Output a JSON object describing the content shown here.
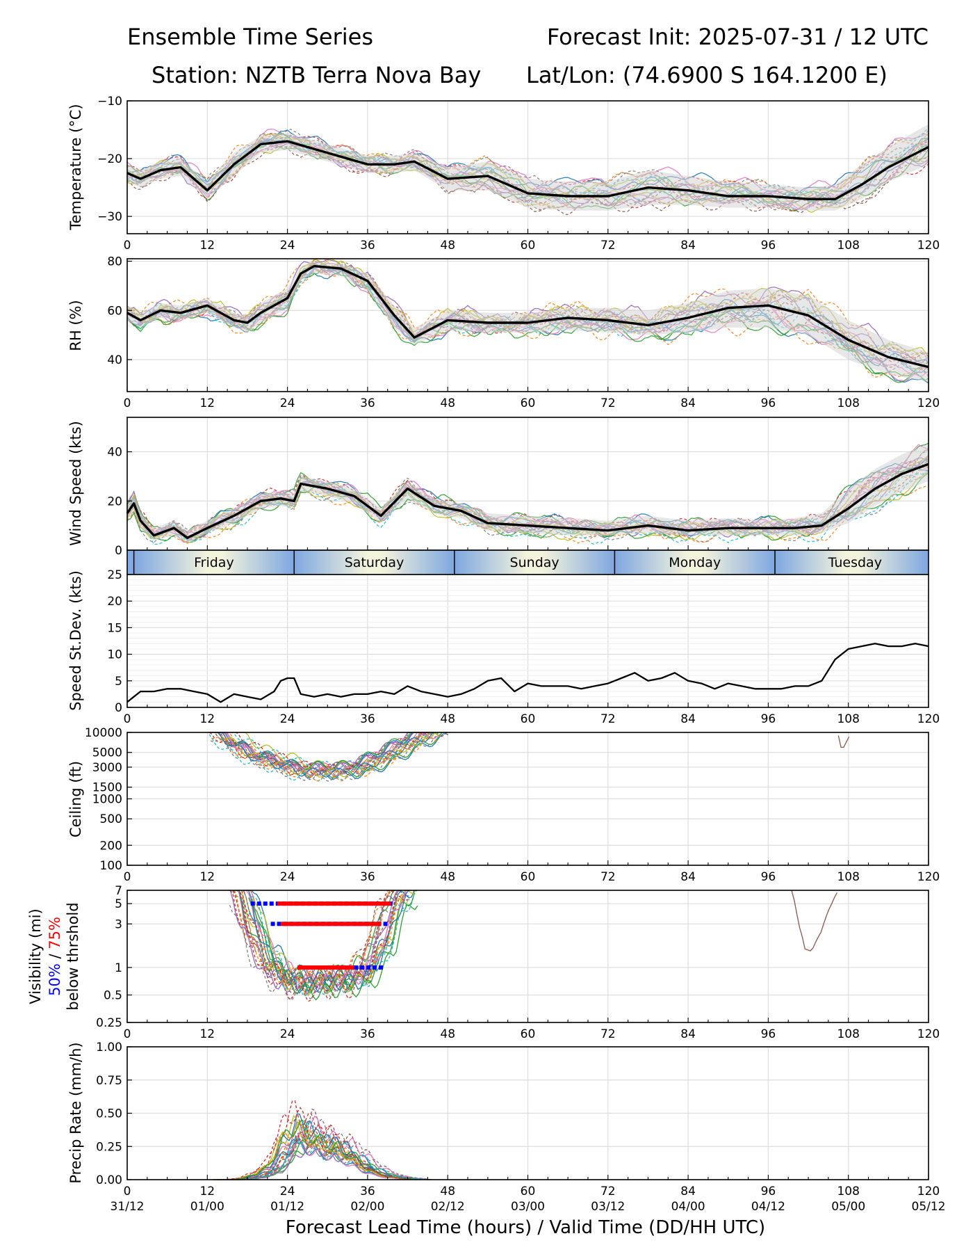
{
  "header": {
    "title_left": "Ensemble Time Series",
    "title_right": "Forecast Init: 2025-07-31 / 12 UTC",
    "station": "Station: NZTB Terra Nova Bay",
    "latlon": "Lat/Lon: (74.6900 S 164.1200 E)"
  },
  "x_axis": {
    "label": "Forecast Lead Time (hours) / Valid Time (DD/HH UTC)",
    "ticks": [
      0,
      12,
      24,
      36,
      48,
      60,
      72,
      84,
      96,
      108,
      120
    ],
    "tick_labels": [
      "0",
      "12",
      "24",
      "36",
      "48",
      "60",
      "72",
      "84",
      "96",
      "108",
      "120"
    ],
    "valid_time_labels": [
      "31/12",
      "01/00",
      "01/12",
      "02/00",
      "02/12",
      "03/00",
      "03/12",
      "04/00",
      "04/12",
      "05/00",
      "05/12"
    ]
  },
  "day_band": {
    "days": [
      "Friday",
      "Saturday",
      "Sunday",
      "Monday",
      "Tuesday"
    ],
    "boundaries_hours": [
      1,
      25,
      49,
      73,
      97
    ]
  },
  "colors": {
    "ensemble_mean": "#000000",
    "spread_band": "#d3d3d3",
    "vis_threshold_50": "#0000ff",
    "vis_threshold_75": "#ff0000",
    "grid": "#dddddd",
    "members": [
      "#1f77b4",
      "#ff7f0e",
      "#2ca02c",
      "#d62728",
      "#9467bd",
      "#8c564b",
      "#e377c2",
      "#7f7f7f",
      "#bcbd22",
      "#17becf"
    ]
  },
  "chart_data": [
    {
      "type": "line",
      "panel": "temperature",
      "ylabel": "Temperature (°C)",
      "ylim": [
        -33,
        -10
      ],
      "yticks": [
        -10,
        -20,
        -30
      ],
      "ytick_labels": [
        "−10",
        "−20",
        "−30"
      ],
      "grid": true,
      "x": [
        0,
        2,
        5,
        8,
        12,
        16,
        20,
        24,
        30,
        36,
        40,
        43,
        48,
        54,
        60,
        66,
        72,
        78,
        84,
        90,
        96,
        102,
        106,
        110,
        114,
        120
      ],
      "series": [
        {
          "name": "mean",
          "values": [
            -22.5,
            -23.5,
            -22.0,
            -21.5,
            -25.5,
            -21.0,
            -17.5,
            -17.0,
            -19.0,
            -21.0,
            -21.0,
            -20.5,
            -23.5,
            -23.0,
            -26.0,
            -26.5,
            -26.5,
            -25.0,
            -25.5,
            -26.5,
            -26.5,
            -27.0,
            -27.0,
            -24.5,
            -21.5,
            -18.0
          ]
        }
      ],
      "spread": {
        "lower": [
          -24,
          -25,
          -23.5,
          -23,
          -27,
          -23,
          -19,
          -18.5,
          -20.5,
          -22.5,
          -22.5,
          -22,
          -25.5,
          -25.5,
          -28.5,
          -29,
          -29,
          -28,
          -28,
          -28.5,
          -28.5,
          -29,
          -29,
          -27,
          -24,
          -21
        ],
        "upper": [
          -21,
          -22,
          -20.5,
          -20,
          -24,
          -19,
          -16,
          -15.5,
          -17.5,
          -19.5,
          -19.5,
          -19,
          -21.5,
          -20.5,
          -23.5,
          -24,
          -24,
          -22,
          -23,
          -24,
          -24.5,
          -25,
          -24.5,
          -21,
          -18,
          -14
        ]
      }
    },
    {
      "type": "line",
      "panel": "rh",
      "ylabel": "RH (%)",
      "ylim": [
        27,
        81
      ],
      "yticks": [
        40,
        60,
        80
      ],
      "ytick_labels": [
        "40",
        "60",
        "80"
      ],
      "grid": true,
      "x": [
        0,
        2,
        5,
        8,
        12,
        16,
        18,
        20,
        24,
        26,
        28,
        32,
        36,
        40,
        43,
        48,
        54,
        60,
        66,
        72,
        78,
        84,
        90,
        96,
        102,
        108,
        114,
        120
      ],
      "series": [
        {
          "name": "mean",
          "values": [
            59,
            56,
            60,
            59,
            62,
            56,
            55,
            59,
            65,
            75,
            78,
            77,
            72,
            58,
            49,
            56,
            55,
            55,
            57,
            56,
            54,
            57,
            61,
            62,
            58,
            48,
            41,
            37
          ]
        }
      ],
      "spread": {
        "lower": [
          56,
          53,
          57,
          56,
          59,
          53,
          51,
          55,
          61,
          72,
          75,
          74,
          68,
          53,
          46,
          52,
          51,
          51,
          52,
          51,
          50,
          51,
          53,
          53,
          50,
          40,
          34,
          31
        ],
        "upper": [
          62,
          59,
          63,
          62,
          65,
          59,
          58,
          63,
          69,
          78,
          80,
          79,
          75,
          62,
          53,
          60,
          59,
          59,
          61,
          61,
          60,
          63,
          68,
          69,
          66,
          56,
          48,
          43
        ]
      }
    },
    {
      "type": "line",
      "panel": "wind",
      "ylabel": "Wind Speed (kts)",
      "ylim": [
        0,
        54
      ],
      "yticks": [
        0,
        20,
        40
      ],
      "ytick_labels": [
        "0",
        "20",
        "40"
      ],
      "grid": true,
      "x": [
        0,
        1,
        2,
        4,
        7,
        9,
        12,
        16,
        20,
        23,
        25,
        26,
        30,
        34,
        38,
        42,
        46,
        50,
        54,
        60,
        66,
        72,
        78,
        84,
        90,
        96,
        100,
        104,
        108,
        112,
        116,
        120
      ],
      "series": [
        {
          "name": "mean",
          "values": [
            15,
            19,
            12,
            6,
            9,
            5,
            9,
            14,
            20,
            21,
            20,
            27,
            25,
            22,
            14,
            25,
            18,
            16,
            11,
            10,
            9,
            8,
            10,
            8,
            9,
            9,
            9,
            10,
            17,
            25,
            31,
            35
          ]
        }
      ],
      "spread": {
        "lower": [
          12,
          16,
          9,
          4,
          6,
          3,
          7,
          11,
          17,
          18,
          17,
          24,
          22,
          19,
          11,
          21,
          15,
          13,
          8,
          7,
          6,
          6,
          7,
          6,
          6,
          6,
          6,
          7,
          11,
          18,
          24,
          28
        ],
        "upper": [
          18,
          22,
          15,
          9,
          12,
          8,
          12,
          17,
          23,
          24,
          23,
          30,
          28,
          25,
          17,
          28,
          21,
          19,
          15,
          14,
          13,
          12,
          14,
          12,
          13,
          12,
          13,
          15,
          25,
          33,
          39,
          43
        ]
      }
    },
    {
      "type": "line",
      "panel": "speed_stdev",
      "ylabel": "Speed St.Dev. (kts)",
      "ylim": [
        0,
        25
      ],
      "yticks": [
        0,
        5,
        10,
        15,
        20,
        25
      ],
      "ytick_labels": [
        "0",
        "5",
        "10",
        "15",
        "20",
        "25"
      ],
      "grid": true,
      "x": [
        0,
        1,
        2,
        4,
        6,
        8,
        10,
        12,
        14,
        16,
        18,
        20,
        22,
        23,
        24,
        25,
        26,
        28,
        30,
        32,
        34,
        36,
        38,
        40,
        42,
        44,
        46,
        48,
        50,
        52,
        54,
        56,
        58,
        60,
        62,
        64,
        66,
        68,
        70,
        72,
        74,
        76,
        78,
        80,
        82,
        84,
        86,
        88,
        90,
        92,
        94,
        96,
        98,
        100,
        102,
        104,
        106,
        108,
        110,
        112,
        114,
        116,
        118,
        120
      ],
      "series": [
        {
          "name": "stdev",
          "values": [
            1,
            2,
            3,
            3,
            3.5,
            3.5,
            3,
            2.5,
            1,
            2.5,
            2,
            1.5,
            3,
            5,
            5.5,
            5.5,
            2.5,
            2,
            2.5,
            2,
            2.5,
            2.5,
            3,
            2.5,
            4,
            3,
            2.5,
            2,
            2.5,
            3.5,
            5,
            5.5,
            3,
            4.5,
            4,
            4,
            4,
            3.5,
            4,
            4.5,
            5.5,
            6.5,
            5,
            5.5,
            6.5,
            5,
            4.5,
            3.5,
            4.5,
            4,
            3.5,
            3.5,
            3.5,
            4,
            4,
            5,
            9,
            11,
            11.5,
            12,
            11.5,
            11.5,
            12,
            11.5
          ]
        }
      ]
    },
    {
      "type": "line",
      "panel": "ceiling",
      "ylabel": "Ceiling (ft)",
      "ylim": [
        100,
        10000
      ],
      "scale": "log",
      "yticks": [
        100,
        200,
        500,
        1000,
        1500,
        3000,
        5000,
        10000
      ],
      "ytick_labels": [
        "100",
        "200",
        "500",
        "1000",
        "1500",
        "3000",
        "5000",
        "10000"
      ],
      "grid": true,
      "segments": [
        {
          "x": [
            14,
            17,
            20,
            23,
            26,
            29,
            32,
            35,
            38,
            41,
            44,
            47
          ],
          "y": [
            10000,
            6000,
            4200,
            3500,
            2700,
            2600,
            2600,
            2800,
            3800,
            5500,
            8000,
            10000
          ]
        },
        {
          "x": [
            106.5,
            107,
            107.5,
            108.5
          ],
          "y": [
            9000,
            5200,
            6500,
            10000
          ]
        }
      ]
    },
    {
      "type": "line",
      "panel": "visibility",
      "ylabel": "Visibility (mi)",
      "ylabel_50": "50%",
      "ylabel_sep": " / ",
      "ylabel_75": "75%",
      "ylabel_line2": "below thrshold",
      "ylim": [
        0.25,
        7
      ],
      "scale": "log",
      "yticks": [
        0.25,
        0.5,
        1,
        3,
        5,
        7
      ],
      "ytick_labels": [
        "0.25",
        "0.5",
        "1",
        "3",
        "5",
        "7"
      ],
      "grid": true,
      "segments": [
        {
          "x": [
            17,
            18.5,
            20,
            22,
            25,
            28,
            31,
            34,
            36.5,
            38.5,
            40,
            42
          ],
          "y": [
            7,
            3,
            1.6,
            0.9,
            0.65,
            0.65,
            0.7,
            0.7,
            1.0,
            2.0,
            4.5,
            7
          ]
        },
        {
          "x": [
            99.5,
            100.5,
            101.5,
            102.5,
            104,
            105.5,
            106.5
          ],
          "y": [
            7,
            3,
            1.6,
            1.5,
            2.5,
            5,
            7
          ]
        }
      ],
      "thresholds": [
        {
          "y": 5,
          "blue_x": [
            18.5,
            40
          ],
          "red_x": [
            22.5,
            39.5
          ]
        },
        {
          "y": 3,
          "blue_x": [
            21.5,
            39
          ],
          "red_x": [
            23,
            38
          ]
        },
        {
          "y": 1,
          "blue_x": [
            25.5,
            38.5
          ],
          "red_x": [
            25.5,
            34
          ]
        }
      ]
    },
    {
      "type": "line",
      "panel": "precip",
      "ylabel": "Precip Rate (mm/h)",
      "ylim": [
        0,
        1
      ],
      "yticks": [
        0,
        0.25,
        0.5,
        0.75,
        1.0
      ],
      "ytick_labels": [
        "0.00",
        "0.25",
        "0.50",
        "0.75",
        "1.00"
      ],
      "grid": true,
      "x": [
        14,
        16,
        18,
        20,
        22,
        24,
        26,
        28,
        30,
        32,
        34,
        36,
        38,
        40,
        42,
        44
      ],
      "series": [
        {
          "name": "member",
          "values": [
            0,
            0,
            0.01,
            0.04,
            0.1,
            0.28,
            0.4,
            0.33,
            0.27,
            0.25,
            0.18,
            0.1,
            0.05,
            0.02,
            0.01,
            0
          ]
        }
      ]
    }
  ]
}
